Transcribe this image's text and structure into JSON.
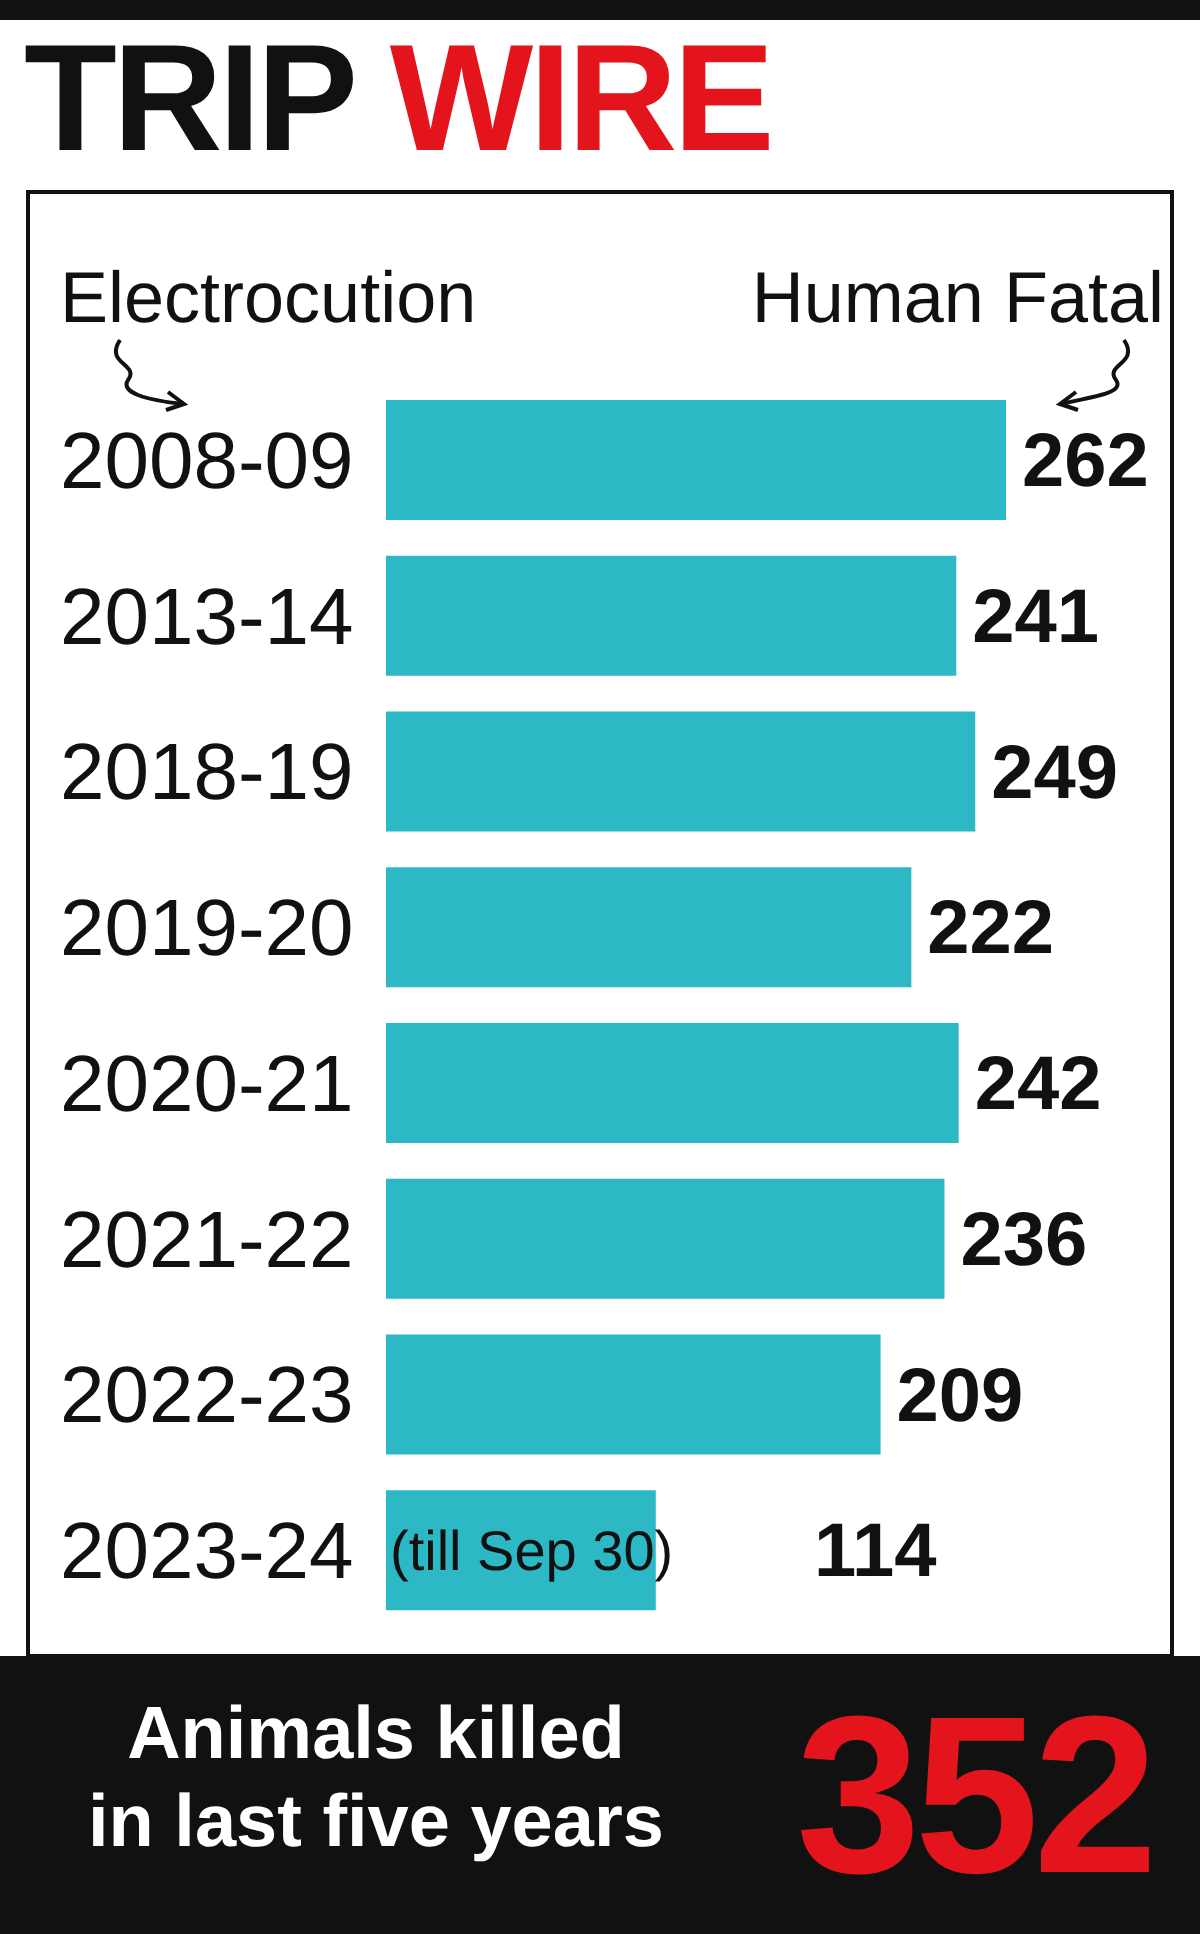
{
  "chart_data": {
    "type": "bar",
    "orientation": "horizontal",
    "title": "TRIP WIRE",
    "categories": [
      "2008-09",
      "2013-14",
      "2018-19",
      "2019-20",
      "2020-21",
      "2021-22",
      "2022-23",
      "2023-24"
    ],
    "values": [
      262,
      241,
      249,
      222,
      242,
      236,
      209,
      114
    ],
    "color": "#2cb8c4",
    "data_labels": true,
    "annotations": [
      "Electrocution",
      "Human Fatal",
      {
        "text": "(till Sep 30)",
        "y": "2023-24"
      },
      "Animals killed\nin last five years",
      "352"
    ]
  }
}
